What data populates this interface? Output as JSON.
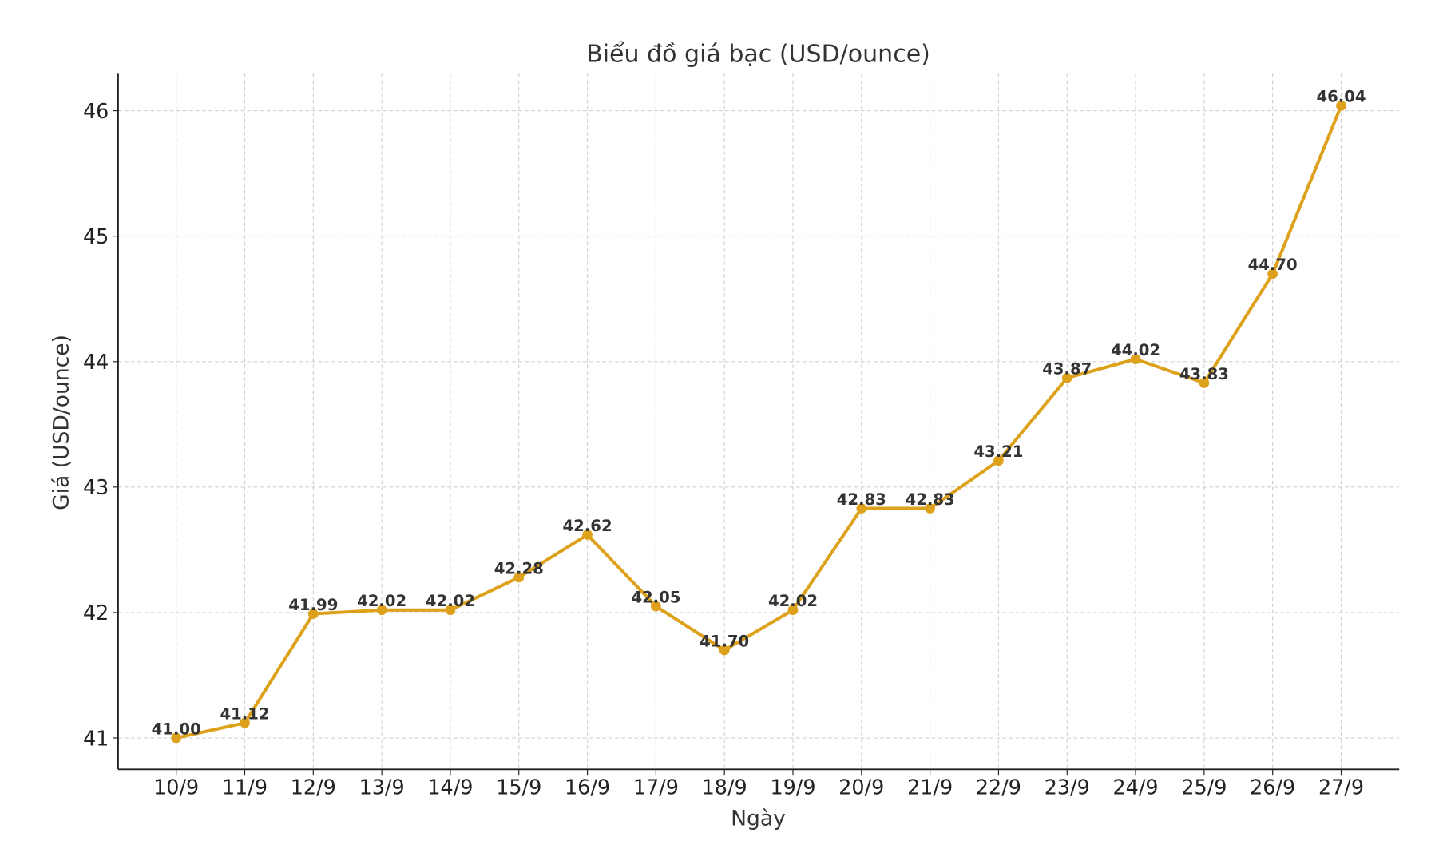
{
  "chart_data": {
    "type": "line",
    "title": "Biểu đồ giá bạc (USD/ounce)",
    "xlabel": "Ngày",
    "ylabel": "Giá (USD/ounce)",
    "categories": [
      "10/9",
      "11/9",
      "12/9",
      "13/9",
      "14/9",
      "15/9",
      "16/9",
      "17/9",
      "18/9",
      "19/9",
      "20/9",
      "21/9",
      "22/9",
      "23/9",
      "24/9",
      "25/9",
      "26/9",
      "27/9"
    ],
    "values": [
      41.0,
      41.12,
      41.99,
      42.02,
      42.02,
      42.28,
      42.62,
      42.05,
      41.7,
      42.02,
      42.83,
      42.83,
      43.21,
      43.87,
      44.02,
      43.83,
      44.7,
      46.04
    ],
    "data_labels": [
      "41.00",
      "41.12",
      "41.99",
      "42.02",
      "42.02",
      "42.28",
      "42.62",
      "42.05",
      "41.70",
      "42.02",
      "42.83",
      "42.83",
      "43.21",
      "43.87",
      "44.02",
      "43.83",
      "44.70",
      "46.04"
    ],
    "yticks": [
      "41",
      "42",
      "43",
      "44",
      "45",
      "46"
    ],
    "ylim": [
      40.75,
      46.3
    ],
    "grid": true,
    "line_color": "#DDA11C"
  }
}
